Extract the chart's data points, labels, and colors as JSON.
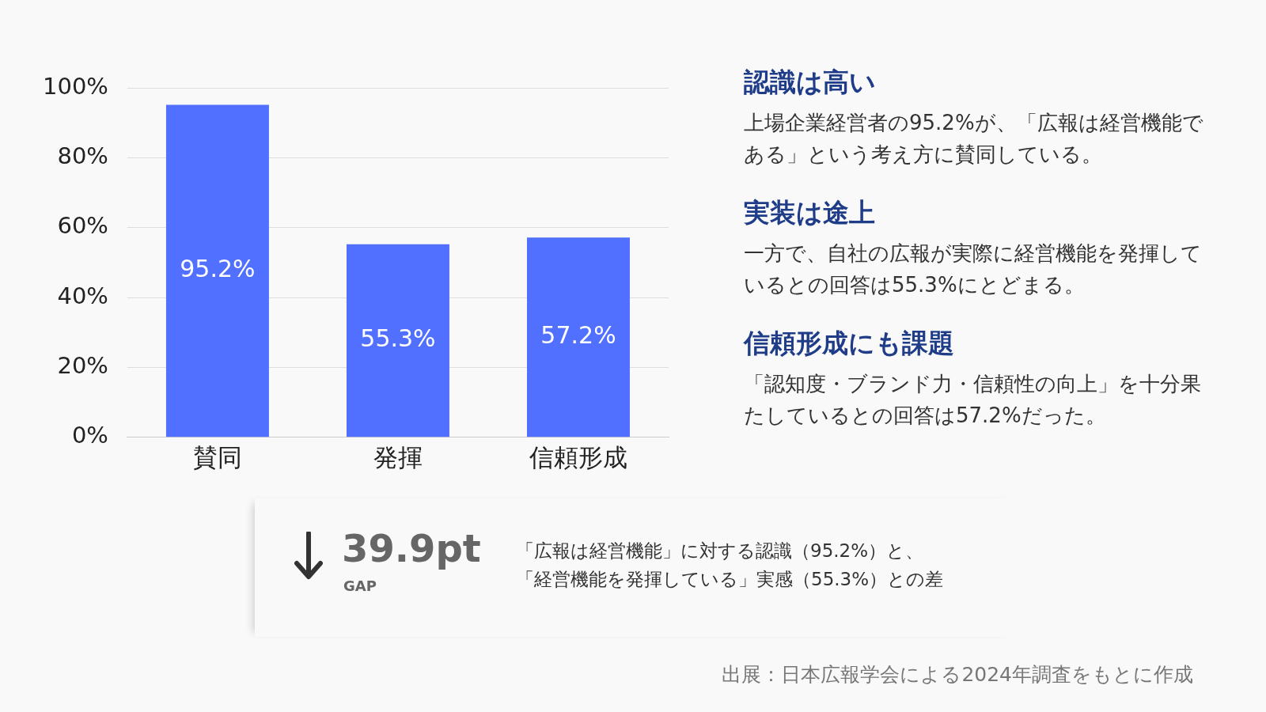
{
  "chart_data": {
    "type": "bar",
    "categories": [
      "賛同",
      "発揮",
      "信頼形成"
    ],
    "values": [
      95.2,
      55.3,
      57.2
    ],
    "value_labels": [
      "95.2%",
      "55.3%",
      "57.2%"
    ],
    "color": "#5170ff",
    "ylim": [
      0,
      100
    ],
    "yticks": [
      {
        "value": 0,
        "label": "0%"
      },
      {
        "value": 20,
        "label": "20%"
      },
      {
        "value": 40,
        "label": "40%"
      },
      {
        "value": 60,
        "label": "60%"
      },
      {
        "value": 80,
        "label": "80%"
      },
      {
        "value": 100,
        "label": "100%"
      }
    ],
    "grid": "y",
    "legend": false,
    "annotations": [
      "認識は高い",
      "上場企業経営者の95.2%が、「広報は経営機能である」という考え方に賛同している。",
      "実装は途上",
      "一方で、自社の広報が実際に経営機能を発揮しているとの回答は55.3%にとどまる。",
      "信頼形成にも課題",
      "「認知度・ブランド力・信頼性の向上」を十分果たしているとの回答は57.2%だった。",
      "39.9pt",
      "GAP",
      "「広報は経営機能」に対する認識（95.2%）と、",
      "「経営機能を発揮している」実感（55.3%）との差",
      "出展：日本広報学会による2024年調査をもとに作成"
    ]
  }
}
